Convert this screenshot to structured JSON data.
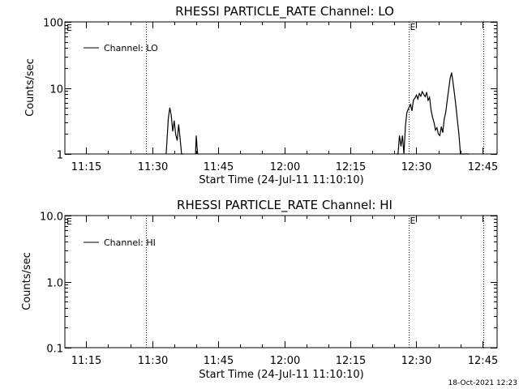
{
  "footer_timestamp": "18-Oct-2021 12:23",
  "chart_data": [
    {
      "type": "line",
      "title": "RHESSI PARTICLE_RATE Channel: LO",
      "xlabel": "Start Time (24-Jul-11 11:10:10)",
      "ylabel": "Counts/sec",
      "yscale": "log",
      "ylim": [
        1,
        100
      ],
      "xlim": [
        "11:10:10",
        "12:48:20"
      ],
      "x_ticks": [
        "11:15",
        "11:30",
        "11:45",
        "12:00",
        "12:15",
        "12:30",
        "12:45"
      ],
      "y_ticks": [
        "1",
        "10",
        "100"
      ],
      "marker_lines": [
        {
          "time": "11:28:40",
          "label": ""
        },
        {
          "time": "12:28:10",
          "label": "E"
        },
        {
          "time": "12:45:10",
          "label": ""
        }
      ],
      "corner_label": "E",
      "legend": "top-left",
      "series": [
        {
          "name": "Channel: LO",
          "x": [
            "11:33:10",
            "11:33:40",
            "11:34:00",
            "11:34:20",
            "11:34:40",
            "11:35:00",
            "11:35:20",
            "11:35:40",
            "11:36:00",
            "11:36:20",
            "11:36:40",
            "11:37:00",
            "11:39:50",
            "11:40:00",
            "11:40:10",
            "11:40:20",
            "12:25:30",
            "12:25:50",
            "12:26:10",
            "12:26:30",
            "12:26:50",
            "12:27:10",
            "12:27:30",
            "12:27:50",
            "12:28:10",
            "12:28:40",
            "12:29:00",
            "12:29:20",
            "12:29:40",
            "12:30:00",
            "12:30:20",
            "12:30:40",
            "12:31:00",
            "12:31:20",
            "12:31:40",
            "12:32:00",
            "12:32:20",
            "12:32:40",
            "12:33:00",
            "12:33:20",
            "12:33:40",
            "12:34:00",
            "12:34:20",
            "12:34:40",
            "12:35:00",
            "12:35:20",
            "12:35:40",
            "12:36:00",
            "12:36:20",
            "12:36:40",
            "12:37:00",
            "12:37:20",
            "12:37:40",
            "12:38:00",
            "12:38:20",
            "12:38:40",
            "12:39:00",
            "12:39:20",
            "12:39:40",
            "12:40:00",
            "12:40:20",
            "12:40:40",
            "12:41:00",
            "12:41:20",
            "12:41:40",
            "12:42:00"
          ],
          "y": [
            1,
            3.5,
            5.0,
            3.8,
            2.2,
            3.2,
            2.0,
            1.6,
            2.8,
            1.7,
            1.0,
            1.0,
            1.0,
            1.9,
            1.3,
            1.0,
            1.0,
            1.0,
            1.9,
            1.3,
            1.9,
            1.0,
            2.6,
            4.2,
            4.8,
            5.6,
            4.5,
            6.5,
            7.0,
            7.8,
            6.8,
            8.2,
            7.5,
            8.8,
            8.0,
            7.4,
            8.6,
            6.5,
            7.2,
            4.6,
            3.6,
            3.0,
            2.3,
            2.5,
            2.0,
            1.9,
            2.6,
            2.1,
            3.4,
            4.3,
            6.5,
            9.5,
            14.0,
            17.0,
            12.0,
            8.0,
            5.2,
            3.2,
            2.0,
            1.0,
            1.0,
            1.0,
            1.0,
            1.0,
            1.0,
            1.0
          ]
        }
      ]
    },
    {
      "type": "line",
      "title": "RHESSI PARTICLE_RATE Channel: HI",
      "xlabel": "Start Time (24-Jul-11 11:10:10)",
      "ylabel": "Counts/sec",
      "yscale": "log",
      "ylim": [
        0.1,
        10
      ],
      "xlim": [
        "11:10:10",
        "12:48:20"
      ],
      "x_ticks": [
        "11:15",
        "11:30",
        "11:45",
        "12:00",
        "12:15",
        "12:30",
        "12:45"
      ],
      "y_ticks": [
        "0.1",
        "1.0",
        "10.0"
      ],
      "marker_lines": [
        {
          "time": "11:28:40",
          "label": ""
        },
        {
          "time": "12:28:10",
          "label": "E"
        },
        {
          "time": "12:45:10",
          "label": ""
        }
      ],
      "corner_label": "E",
      "legend": "top-left",
      "series": [
        {
          "name": "Channel: HI",
          "x": [],
          "y": []
        }
      ]
    }
  ]
}
